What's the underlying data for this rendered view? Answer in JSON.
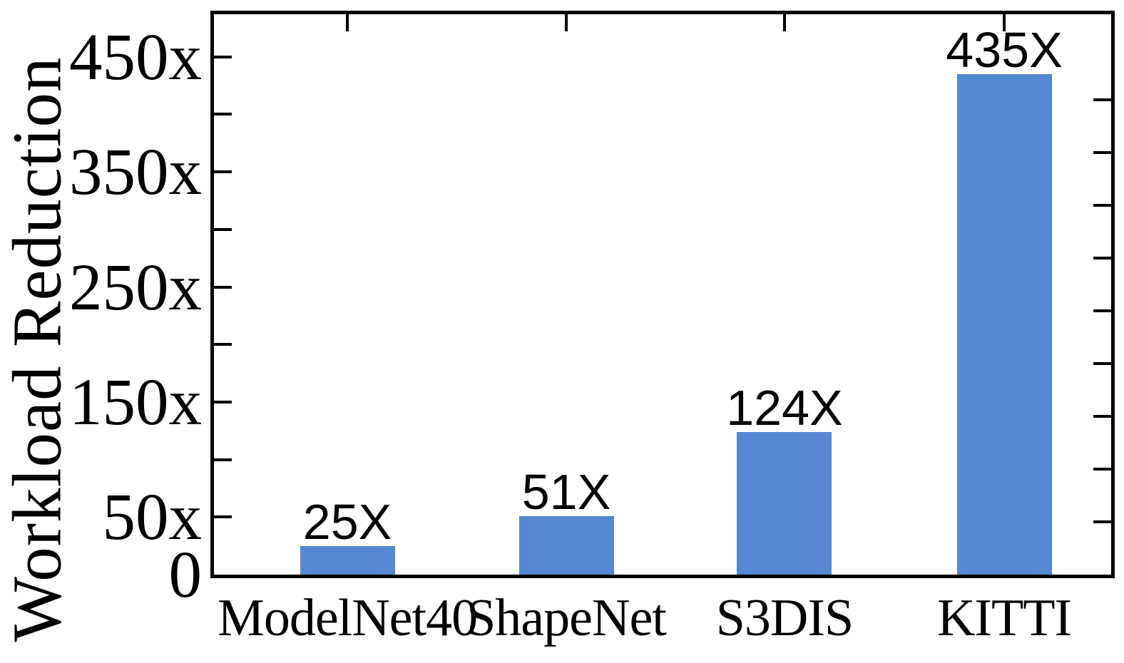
{
  "chart_data": {
    "type": "bar",
    "title": "",
    "categories": [
      "ModelNet40",
      "ShapeNet",
      "S3DIS",
      "KITTI"
    ],
    "values": [
      25,
      51,
      124,
      435
    ],
    "bar_labels": [
      "25X",
      "51X",
      "124X",
      "435X"
    ],
    "xlabel": "",
    "ylabel": "Workload Reduction",
    "ylim": [
      0,
      487
    ],
    "yticks": [
      50,
      100,
      150,
      200,
      250,
      300,
      350,
      400,
      450
    ],
    "ytick_labels": [
      {
        "value": 0,
        "label": "0"
      },
      {
        "value": 50,
        "label": "50x"
      },
      {
        "value": 150,
        "label": "150x"
      },
      {
        "value": 250,
        "label": "250x"
      },
      {
        "value": 350,
        "label": "350x"
      },
      {
        "value": 450,
        "label": "450x"
      }
    ],
    "right_axis": {
      "ylim": [
        0,
        531
      ],
      "ticks": [
        50,
        100,
        150,
        200,
        250,
        300,
        350,
        400,
        450
      ]
    },
    "top_ticks_at_bar_centers": true,
    "grid": false,
    "frame": "box",
    "tick_direction": "in",
    "legend": "none",
    "bar_color": "#5588D0",
    "axis_color": "#000000",
    "text_color": "#000000",
    "background_color": "#ffffff"
  }
}
